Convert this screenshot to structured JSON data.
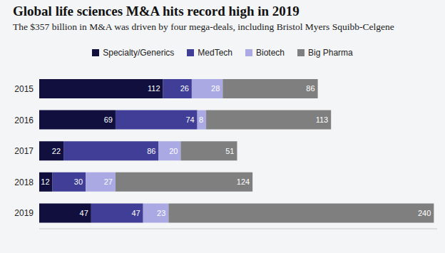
{
  "chart_data": {
    "type": "bar",
    "title": "Global life sciences M&A hits record high in 2019",
    "subtitle": "The $357 billion in M&A was driven by four mega-deals, including Bristol Myers Squibb-Celgene",
    "categories": [
      "2015",
      "2016",
      "2017",
      "2018",
      "2019"
    ],
    "series": [
      {
        "name": "Specialty/Generics",
        "color": "#100f3e",
        "values": [
          112,
          69,
          22,
          12,
          47
        ]
      },
      {
        "name": "MedTech",
        "color": "#403e96",
        "values": [
          26,
          74,
          86,
          30,
          47
        ]
      },
      {
        "name": "Biotech",
        "color": "#aba9e4",
        "values": [
          28,
          8,
          20,
          27,
          23
        ]
      },
      {
        "name": "Big Pharma",
        "color": "#7f7f7f",
        "values": [
          86,
          113,
          51,
          124,
          240
        ]
      }
    ],
    "orientation": "horizontal",
    "stacked": true,
    "data_labels": true,
    "legend": "top",
    "tick_labels": "y",
    "grid": false,
    "xlim": [
      0,
      360
    ]
  }
}
